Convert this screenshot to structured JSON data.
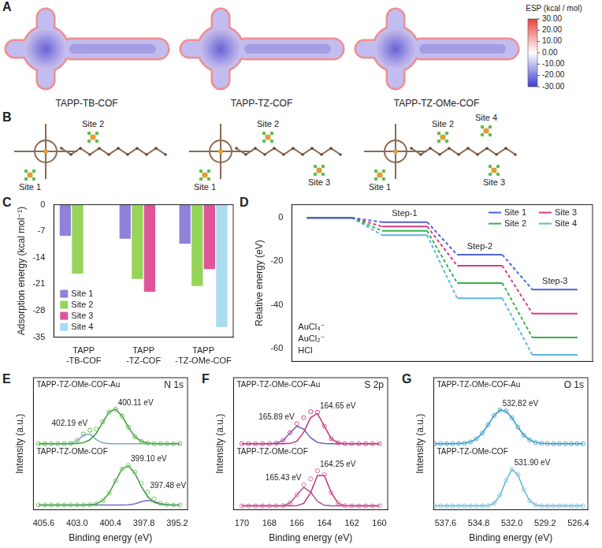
{
  "diagram": {
    "A": {
      "panel": "A",
      "structures": [
        "TAPP-TB-COF",
        "TAPP-TZ-COF",
        "TAPP-TZ-OMe-COF"
      ],
      "colorbar": {
        "title": "ESP (kcal / mol)",
        "range": [
          -30,
          30
        ],
        "ticks": [
          {
            "value": 30,
            "label": "30.00"
          },
          {
            "value": 20,
            "label": "20.00"
          },
          {
            "value": 10,
            "label": "10.00"
          },
          {
            "value": 0,
            "label": "0.00"
          },
          {
            "value": -10,
            "label": "-10.00"
          },
          {
            "value": -20,
            "label": "-20.00"
          },
          {
            "value": -30,
            "label": "-30.00"
          }
        ]
      }
    },
    "B": {
      "panel": "B",
      "structures": [
        {
          "sites": [
            "Site 1",
            "Site 2"
          ]
        },
        {
          "sites": [
            "Site 1",
            "Site 2",
            "Site 3"
          ]
        },
        {
          "sites": [
            "Site 1",
            "Site 2",
            "Site 3",
            "Site 4"
          ]
        }
      ]
    }
  },
  "chart_data": [
    {
      "panel": "C",
      "type": "bar",
      "categories": [
        "TAPP-TB-COF",
        "TAPP-TZ-COF",
        "TAPP-TZ-OMe-COF"
      ],
      "series": [
        {
          "name": "Site 1",
          "color": "#8f82d8",
          "values": [
            -8.2,
            -9.0,
            -10.3
          ]
        },
        {
          "name": "Site 2",
          "color": "#96d45a",
          "values": [
            -18.2,
            -19.6,
            -21.5
          ]
        },
        {
          "name": "Site 3",
          "color": "#e0559a",
          "values": [
            null,
            -23.0,
            -17.0
          ]
        },
        {
          "name": "Site 4",
          "color": "#a9dcef",
          "values": [
            null,
            null,
            -32.3
          ]
        }
      ],
      "ylabel": "Adsorption energy (kcal mol⁻¹)",
      "ylim": [
        -35,
        0
      ],
      "yticks": [
        -35,
        -28,
        -21,
        -14,
        -7,
        0
      ],
      "grid": false,
      "legend": "lower left"
    },
    {
      "panel": "D",
      "type": "line",
      "categories": [
        null,
        "Step-1",
        "Step-2",
        "Step-3"
      ],
      "series": [
        {
          "name": "Site 1",
          "color": "#4f62d6",
          "values": [
            0,
            -2,
            -17,
            -33
          ]
        },
        {
          "name": "Site 2",
          "color": "#35b24a",
          "values": [
            0,
            -6,
            -30,
            -55
          ]
        },
        {
          "name": "Site 3",
          "color": "#d63c8a",
          "values": [
            0,
            -4,
            -22,
            -44
          ]
        },
        {
          "name": "Site 4",
          "color": "#5ab6e0",
          "values": [
            0,
            -8,
            -37,
            -63
          ]
        }
      ],
      "ylabel": "Relative energy (eV)",
      "ylim": [
        -66,
        6
      ],
      "yticks": [
        -60,
        -40,
        -20,
        0
      ],
      "tick_labels": "y",
      "grid": false,
      "legend": "upper right",
      "annotations": [
        "AuCl₄⁻",
        "AuCl₂⁻",
        "HCl"
      ]
    },
    {
      "panel": "E",
      "type": "line",
      "title": "N 1s",
      "xlabel": "Binding energy (eV)",
      "ylabel": "Intensity (a.u.)",
      "x": [
        406,
        405.5,
        405,
        404.5,
        404,
        403.5,
        403,
        402.5,
        402,
        401.5,
        401,
        400.5,
        400,
        399.5,
        399,
        398.5,
        398,
        397.5,
        397,
        396.5,
        396,
        395.5,
        395
      ],
      "xlim": [
        406.4,
        394.4
      ],
      "xticks": [
        405.6,
        {
          "value": 403,
          "label": "403.0"
        },
        400.4,
        397.8,
        395.2
      ],
      "ylim": [
        0,
        14
      ],
      "tick_labels": "x",
      "grid": false,
      "series": [
        {
          "name": "TAPP-TZ-OMe-COF-Au",
          "color": "#5fbf4f",
          "marker": "circle",
          "line_style": "none",
          "values": [
            7,
            7,
            7,
            7,
            7,
            7.03,
            7.32,
            8.02,
            8.43,
            8.54,
            9.33,
            10.37,
            10.66,
            9.94,
            8.74,
            7.74,
            7.24,
            7.06,
            7,
            7,
            7,
            7,
            7
          ]
        },
        {
          "name": "400.11 eV",
          "color": "#3f9a3f",
          "marker": "none",
          "line_style": "solid",
          "values": [
            7,
            7,
            7,
            7,
            7,
            7,
            7.02,
            7.11,
            7.41,
            8.11,
            9.26,
            10.37,
            10.66,
            9.94,
            8.74,
            7.74,
            7.24,
            7.06,
            7,
            7,
            7,
            7,
            7
          ]
        },
        {
          "name": "402.19 eV",
          "color": "#7fa6c9",
          "marker": "none",
          "line_style": "solid",
          "values": [
            7,
            7,
            7,
            7,
            7,
            7.03,
            7.3,
            7.91,
            8.02,
            7.43,
            7.07,
            7,
            7,
            7,
            7,
            7,
            7,
            7,
            7,
            7,
            7,
            7,
            7
          ]
        },
        {
          "name": "TAPP-TZ-OMe-COF",
          "color": "#7acc6a",
          "marker": "circle",
          "line_style": "none",
          "values": [
            0.5,
            0.5,
            0.5,
            0.5,
            0.5,
            0.5,
            0.5,
            0.5,
            0.53,
            0.62,
            0.96,
            1.76,
            3.06,
            4.32,
            4.68,
            3.98,
            2.82,
            1.88,
            1.15,
            0.69,
            0.54,
            0.5,
            0.5
          ]
        },
        {
          "name": "399.10 eV",
          "color": "#3f9a3f",
          "marker": "none",
          "line_style": "solid",
          "values": [
            0.5,
            0.5,
            0.5,
            0.5,
            0.5,
            0.5,
            0.5,
            0.5,
            0.53,
            0.62,
            0.96,
            1.76,
            3.06,
            4.32,
            4.66,
            3.86,
            2.47,
            1.38,
            0.78,
            0.56,
            0.51,
            0.5,
            0.5
          ]
        },
        {
          "name": "397.48 eV",
          "color": "#6d6dc4",
          "marker": "none",
          "line_style": "solid",
          "values": [
            0.5,
            0.5,
            0.5,
            0.5,
            0.5,
            0.5,
            0.5,
            0.5,
            0.5,
            0.5,
            0.5,
            0.5,
            0.5,
            0.5,
            0.52,
            0.62,
            0.85,
            1.0,
            0.87,
            0.63,
            0.53,
            0.5,
            0.5
          ]
        }
      ]
    },
    {
      "panel": "F",
      "type": "line",
      "title": "S 2p",
      "xlabel": "Binding energy (eV)",
      "ylabel": "Intensity (a.u.)",
      "x": [
        170,
        169.5,
        169,
        168.5,
        168,
        167.5,
        167,
        166.5,
        166,
        165.5,
        165,
        164.5,
        164,
        163.5,
        163,
        162.5,
        162,
        161.5,
        161,
        160.5,
        160
      ],
      "xlim": [
        170.6,
        159.4
      ],
      "xticks": [
        170,
        168,
        166,
        164,
        162,
        160
      ],
      "ylim": [
        0,
        14
      ],
      "tick_labels": "x",
      "grid": false,
      "series": [
        {
          "name": "TAPP-TZ-OMe-COF-Au",
          "color": "#d9478f",
          "marker": "circle",
          "line_style": "none",
          "values": [
            7,
            7,
            7,
            7,
            7,
            7.05,
            7.34,
            8.17,
            9.12,
            9.76,
            10.4,
            10.33,
            8.86,
            7.53,
            7.08,
            7,
            7,
            7,
            7,
            7,
            7
          ]
        },
        {
          "name": "164.65 eV",
          "color": "#c2337a",
          "marker": "none",
          "line_style": "solid",
          "values": [
            7,
            7,
            7,
            7,
            7,
            7,
            7,
            7.03,
            7.26,
            8.22,
            9.77,
            10.2,
            8.85,
            7.53,
            7.08,
            7,
            7,
            7,
            7,
            7,
            7
          ]
        },
        {
          "name": "165.89 eV",
          "color": "#6a5cb8",
          "marker": "none",
          "line_style": "solid",
          "values": [
            7,
            7,
            7,
            7,
            7,
            7.05,
            7.34,
            8.14,
            8.86,
            8.54,
            7.63,
            7.13,
            7.01,
            7,
            7,
            7,
            7,
            7,
            7,
            7,
            7
          ]
        },
        {
          "name": "TAPP-TZ-OMe-COF",
          "color": "#e070a8",
          "marker": "circle",
          "line_style": "none",
          "values": [
            0.4,
            0.4,
            0.4,
            0.4,
            0.4,
            0.4,
            0.43,
            0.7,
            1.58,
            2.65,
            3.26,
            4.12,
            3.71,
            1.8,
            0.67,
            0.42,
            0.4,
            0.4,
            0.4,
            0.4,
            0.4
          ]
        },
        {
          "name": "164.25 eV",
          "color": "#c2337a",
          "marker": "none",
          "line_style": "solid",
          "values": [
            0.4,
            0.4,
            0.4,
            0.4,
            0.4,
            0.4,
            0.4,
            0.4,
            0.42,
            0.67,
            1.8,
            3.64,
            3.64,
            1.8,
            0.67,
            0.42,
            0.4,
            0.4,
            0.4,
            0.4,
            0.4
          ]
        },
        {
          "name": "165.43 eV",
          "color": "#b04f9a",
          "marker": "none",
          "line_style": "solid",
          "values": [
            0.4,
            0.4,
            0.4,
            0.4,
            0.4,
            0.4,
            0.43,
            0.7,
            1.56,
            2.38,
            1.86,
            0.88,
            0.47,
            0.4,
            0.4,
            0.4,
            0.4,
            0.4,
            0.4,
            0.4,
            0.4
          ]
        }
      ]
    },
    {
      "panel": "G",
      "type": "line",
      "title": "O 1s",
      "xlabel": "Binding energy (eV)",
      "ylabel": "Intensity (a.u.)",
      "x": [
        538.5,
        538,
        537.5,
        537,
        536.5,
        536,
        535.5,
        535,
        534.5,
        534,
        533.5,
        533,
        532.5,
        532,
        531.5,
        531,
        530.5,
        530,
        529.5,
        529,
        528.5,
        528,
        527.5,
        527,
        526.5,
        526
      ],
      "xlim": [
        538.6,
        525.6
      ],
      "xticks": [
        537.6,
        534.8,
        {
          "value": 532,
          "label": "532.0"
        },
        529.2,
        526.4
      ],
      "ylim": [
        0,
        14
      ],
      "tick_labels": "x",
      "grid": false,
      "series": [
        {
          "name": "TAPP-TZ-OMe-COF-Au",
          "color": "#4aa8d0",
          "marker": "circle",
          "line_style": "none",
          "values": [
            7,
            7,
            7,
            7,
            7.01,
            7.05,
            7.18,
            7.5,
            8.12,
            9.02,
            9.99,
            10.56,
            10.46,
            9.74,
            8.76,
            7.9,
            7.4,
            7.13,
            7.04,
            7.01,
            7,
            7,
            7,
            7,
            7,
            7
          ]
        },
        {
          "name": "532.82 eV",
          "color": "#2f8fc0",
          "marker": "none",
          "line_style": "solid",
          "values": [
            7,
            7,
            7,
            7,
            7.01,
            7.05,
            7.18,
            7.5,
            8.12,
            9.02,
            9.99,
            10.56,
            10.46,
            9.74,
            8.76,
            7.9,
            7.4,
            7.13,
            7.04,
            7.01,
            7,
            7,
            7,
            7,
            7,
            7
          ]
        },
        {
          "name": "TAPP-TZ-OMe-COF",
          "color": "#8ccbe4",
          "marker": "circle",
          "line_style": "none",
          "values": [
            0.4,
            0.4,
            0.4,
            0.4,
            0.4,
            0.4,
            0.4,
            0.4,
            0.4,
            0.44,
            0.68,
            1.53,
            3.09,
            4.26,
            3.72,
            2.12,
            0.93,
            0.5,
            0.41,
            0.4,
            0.4,
            0.4,
            0.4,
            0.4,
            0.4,
            0.4
          ]
        },
        {
          "name": "531.90 eV",
          "color": "#5fb0d6",
          "marker": "none",
          "line_style": "solid",
          "values": [
            0.4,
            0.4,
            0.4,
            0.4,
            0.4,
            0.4,
            0.4,
            0.4,
            0.4,
            0.44,
            0.68,
            1.53,
            3.09,
            4.26,
            3.72,
            2.12,
            0.93,
            0.5,
            0.41,
            0.4,
            0.4,
            0.4,
            0.4,
            0.4,
            0.4,
            0.4
          ]
        }
      ]
    }
  ]
}
